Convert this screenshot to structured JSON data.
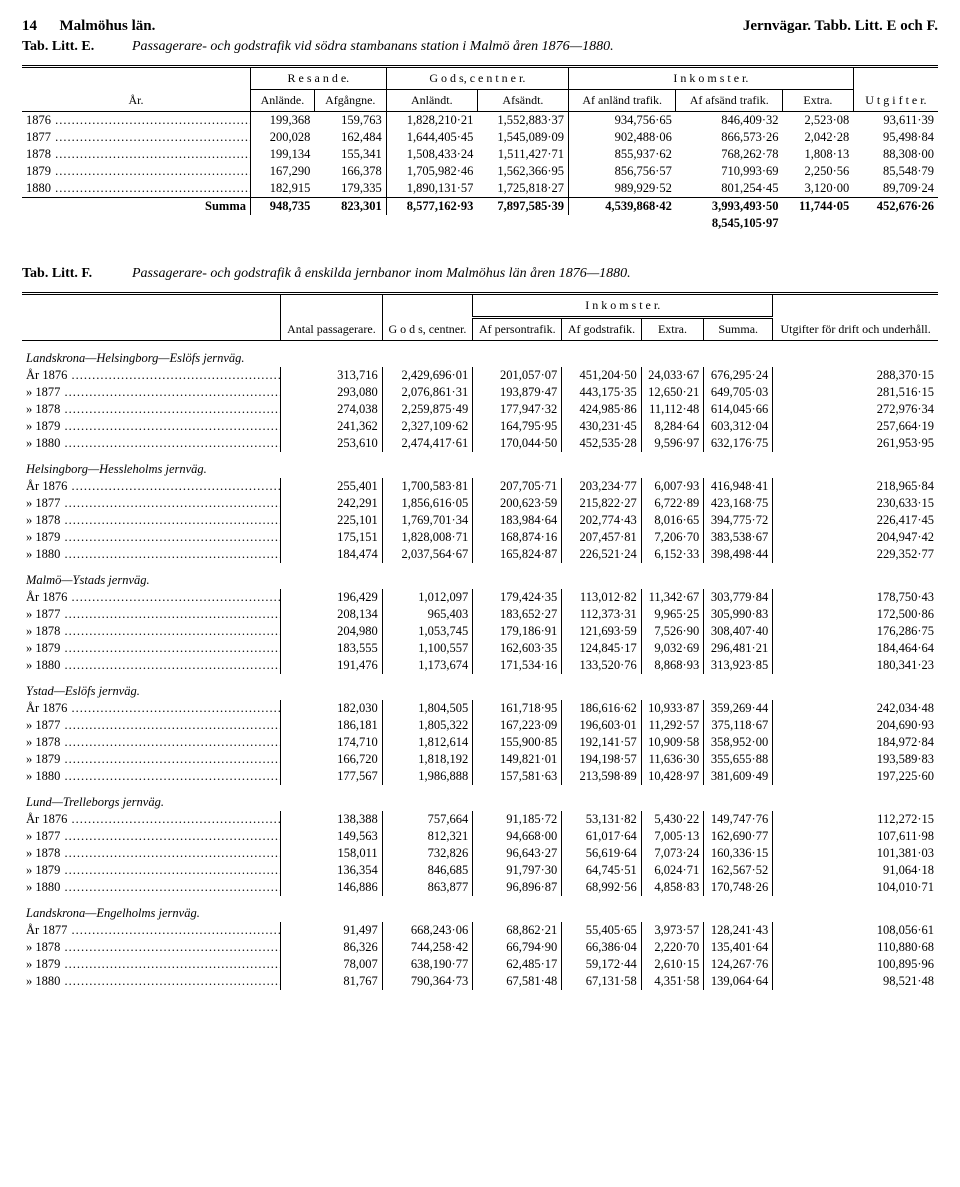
{
  "page": {
    "number": "14",
    "region": "Malmöhus län.",
    "rightTitle": "Jernvägar. Tabb. Litt. E och F."
  },
  "tableE": {
    "tag": "Tab. Litt. E.",
    "title": "Passagerare- och godstrafik vid södra stambanans station i Malmö åren 1876—1880.",
    "headers": {
      "year": "År.",
      "resande": "R e s a n d e.",
      "gods": "G o d s,  c e n t n e r.",
      "inkomster": "I n k o m s t e r.",
      "utgifter": "U t g i f t e r.",
      "anlande": "Anlände.",
      "afgangne": "Afgångne.",
      "anlandt": "Anländt.",
      "afsandt": "Afsändt.",
      "afAnland": "Af anländ trafik.",
      "afAfsand": "Af afsänd trafik.",
      "extra": "Extra."
    },
    "rows": [
      {
        "year": "1876",
        "c": [
          "199,368",
          "159,763",
          "1,828,210·21",
          "1,552,883·37",
          "934,756·65",
          "846,409·32",
          "2,523·08",
          "93,611·39"
        ]
      },
      {
        "year": "1877",
        "c": [
          "200,028",
          "162,484",
          "1,644,405·45",
          "1,545,089·09",
          "902,488·06",
          "866,573·26",
          "2,042·28",
          "95,498·84"
        ]
      },
      {
        "year": "1878",
        "c": [
          "199,134",
          "155,341",
          "1,508,433·24",
          "1,511,427·71",
          "855,937·62",
          "768,262·78",
          "1,808·13",
          "88,308·00"
        ]
      },
      {
        "year": "1879",
        "c": [
          "167,290",
          "166,378",
          "1,705,982·46",
          "1,562,366·95",
          "856,756·57",
          "710,993·69",
          "2,250·56",
          "85,548·79"
        ]
      },
      {
        "year": "1880",
        "c": [
          "182,915",
          "179,335",
          "1,890,131·57",
          "1,725,818·27",
          "989,929·52",
          "801,254·45",
          "3,120·00",
          "89,709·24"
        ]
      }
    ],
    "summaLabel": "Summa",
    "summa": [
      "948,735",
      "823,301",
      "8,577,162·93",
      "7,897,585·39",
      "4,539,868·42",
      "3,993,493·50",
      "11,744·05",
      "452,676·26"
    ],
    "below": "8,545,105·97"
  },
  "tableF": {
    "tag": "Tab. Litt. F.",
    "title": "Passagerare- och godstrafik å enskilda jernbanor inom Malmöhus län åren 1876—1880.",
    "headers": {
      "antal": "Antal passagerare.",
      "gods": "G o d s, centner.",
      "inkomster": "I   n   k   o   m   s   t   e   r.",
      "afPerson": "Af persontrafik.",
      "afGods": "Af godstrafik.",
      "extra": "Extra.",
      "summa": "Summa.",
      "utgifter": "Utgifter för drift och underhåll."
    },
    "sections": [
      {
        "name": "Landskrona—Helsingborg—Eslöfs jernväg.",
        "rows": [
          {
            "y": "År 1876",
            "c": [
              "313,716",
              "2,429,696·01",
              "201,057·07",
              "451,204·50",
              "24,033·67",
              "676,295·24",
              "288,370·15"
            ]
          },
          {
            "y": "»  1877",
            "c": [
              "293,080",
              "2,076,861·31",
              "193,879·47",
              "443,175·35",
              "12,650·21",
              "649,705·03",
              "281,516·15"
            ]
          },
          {
            "y": "»  1878",
            "c": [
              "274,038",
              "2,259,875·49",
              "177,947·32",
              "424,985·86",
              "11,112·48",
              "614,045·66",
              "272,976·34"
            ]
          },
          {
            "y": "»  1879",
            "c": [
              "241,362",
              "2,327,109·62",
              "164,795·95",
              "430,231·45",
              "8,284·64",
              "603,312·04",
              "257,664·19"
            ]
          },
          {
            "y": "»  1880",
            "c": [
              "253,610",
              "2,474,417·61",
              "170,044·50",
              "452,535·28",
              "9,596·97",
              "632,176·75",
              "261,953·95"
            ]
          }
        ]
      },
      {
        "name": "Helsingborg—Hessleholms jernväg.",
        "rows": [
          {
            "y": "År 1876",
            "c": [
              "255,401",
              "1,700,583·81",
              "207,705·71",
              "203,234·77",
              "6,007·93",
              "416,948·41",
              "218,965·84"
            ]
          },
          {
            "y": "»  1877",
            "c": [
              "242,291",
              "1,856,616·05",
              "200,623·59",
              "215,822·27",
              "6,722·89",
              "423,168·75",
              "230,633·15"
            ]
          },
          {
            "y": "»  1878",
            "c": [
              "225,101",
              "1,769,701·34",
              "183,984·64",
              "202,774·43",
              "8,016·65",
              "394,775·72",
              "226,417·45"
            ]
          },
          {
            "y": "»  1879",
            "c": [
              "175,151",
              "1,828,008·71",
              "168,874·16",
              "207,457·81",
              "7,206·70",
              "383,538·67",
              "204,947·42"
            ]
          },
          {
            "y": "»  1880",
            "c": [
              "184,474",
              "2,037,564·67",
              "165,824·87",
              "226,521·24",
              "6,152·33",
              "398,498·44",
              "229,352·77"
            ]
          }
        ]
      },
      {
        "name": "Malmö—Ystads jernväg.",
        "rows": [
          {
            "y": "År 1876",
            "c": [
              "196,429",
              "1,012,097",
              "179,424·35",
              "113,012·82",
              "11,342·67",
              "303,779·84",
              "178,750·43"
            ]
          },
          {
            "y": "»  1877",
            "c": [
              "208,134",
              "965,403",
              "183,652·27",
              "112,373·31",
              "9,965·25",
              "305,990·83",
              "172,500·86"
            ]
          },
          {
            "y": "»  1878",
            "c": [
              "204,980",
              "1,053,745",
              "179,186·91",
              "121,693·59",
              "7,526·90",
              "308,407·40",
              "176,286·75"
            ]
          },
          {
            "y": "»  1879",
            "c": [
              "183,555",
              "1,100,557",
              "162,603·35",
              "124,845·17",
              "9,032·69",
              "296,481·21",
              "184,464·64"
            ]
          },
          {
            "y": "»  1880",
            "c": [
              "191,476",
              "1,173,674",
              "171,534·16",
              "133,520·76",
              "8,868·93",
              "313,923·85",
              "180,341·23"
            ]
          }
        ]
      },
      {
        "name": "Ystad—Eslöfs jernväg.",
        "rows": [
          {
            "y": "År 1876",
            "c": [
              "182,030",
              "1,804,505",
              "161,718·95",
              "186,616·62",
              "10,933·87",
              "359,269·44",
              "242,034·48"
            ]
          },
          {
            "y": "»  1877",
            "c": [
              "186,181",
              "1,805,322",
              "167,223·09",
              "196,603·01",
              "11,292·57",
              "375,118·67",
              "204,690·93"
            ]
          },
          {
            "y": "»  1878",
            "c": [
              "174,710",
              "1,812,614",
              "155,900·85",
              "192,141·57",
              "10,909·58",
              "358,952·00",
              "184,972·84"
            ]
          },
          {
            "y": "»  1879",
            "c": [
              "166,720",
              "1,818,192",
              "149,821·01",
              "194,198·57",
              "11,636·30",
              "355,655·88",
              "193,589·83"
            ]
          },
          {
            "y": "»  1880",
            "c": [
              "177,567",
              "1,986,888",
              "157,581·63",
              "213,598·89",
              "10,428·97",
              "381,609·49",
              "197,225·60"
            ]
          }
        ]
      },
      {
        "name": "Lund—Trelleborgs jernväg.",
        "rows": [
          {
            "y": "År 1876",
            "c": [
              "138,388",
              "757,664",
              "91,185·72",
              "53,131·82",
              "5,430·22",
              "149,747·76",
              "112,272·15"
            ]
          },
          {
            "y": "»  1877",
            "c": [
              "149,563",
              "812,321",
              "94,668·00",
              "61,017·64",
              "7,005·13",
              "162,690·77",
              "107,611·98"
            ]
          },
          {
            "y": "»  1878",
            "c": [
              "158,011",
              "732,826",
              "96,643·27",
              "56,619·64",
              "7,073·24",
              "160,336·15",
              "101,381·03"
            ]
          },
          {
            "y": "»  1879",
            "c": [
              "136,354",
              "846,685",
              "91,797·30",
              "64,745·51",
              "6,024·71",
              "162,567·52",
              "91,064·18"
            ]
          },
          {
            "y": "»  1880",
            "c": [
              "146,886",
              "863,877",
              "96,896·87",
              "68,992·56",
              "4,858·83",
              "170,748·26",
              "104,010·71"
            ]
          }
        ]
      },
      {
        "name": "Landskrona—Engelholms jernväg.",
        "rows": [
          {
            "y": "År 1877",
            "c": [
              "91,497",
              "668,243·06",
              "68,862·21",
              "55,405·65",
              "3,973·57",
              "128,241·43",
              "108,056·61"
            ]
          },
          {
            "y": "»  1878",
            "c": [
              "86,326",
              "744,258·42",
              "66,794·90",
              "66,386·04",
              "2,220·70",
              "135,401·64",
              "110,880·68"
            ]
          },
          {
            "y": "»  1879",
            "c": [
              "78,007",
              "638,190·77",
              "62,485·17",
              "59,172·44",
              "2,610·15",
              "124,267·76",
              "100,895·96"
            ]
          },
          {
            "y": "»  1880",
            "c": [
              "81,767",
              "790,364·73",
              "67,581·48",
              "67,131·58",
              "4,351·58",
              "139,064·64",
              "98,521·48"
            ]
          }
        ]
      }
    ]
  }
}
